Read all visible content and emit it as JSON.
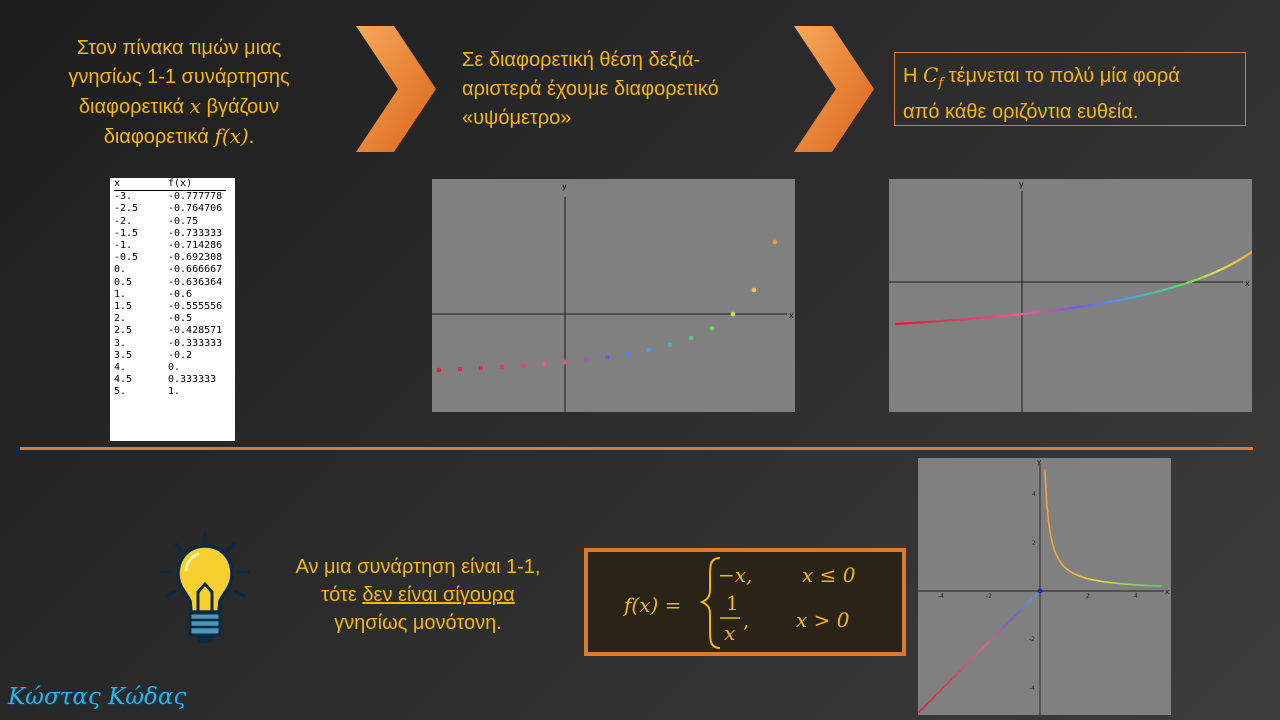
{
  "step1": {
    "line1": "Στον πίνακα τιμών μιας",
    "line2": "γνησίως 1-1 συνάρτησης",
    "line3_pre": "διαφορετικά ",
    "line3_var": "x",
    "line3_post": " βγάζουν",
    "line4_pre": "διαφορετικά ",
    "line4_var": "f(x)",
    "line4_post": "."
  },
  "step2": {
    "line1": "Σε διαφορετική θέση δεξιά-",
    "line2": "αριστερά έχουμε διαφορετικό",
    "line3": "«υψόμετρο»"
  },
  "step3": {
    "pre": "Η ",
    "var": "C",
    "sub": "f",
    "post": " τέμνεται το πολύ μία φορά",
    "line2": "από κάθε οριζόντια ευθεία."
  },
  "table": {
    "headers": [
      "x",
      "f(x)"
    ],
    "rows": [
      [
        "-3.",
        "-0.777778"
      ],
      [
        "-2.5",
        "-0.764706"
      ],
      [
        "-2.",
        "-0.75"
      ],
      [
        "-1.5",
        "-0.733333"
      ],
      [
        "-1.",
        "-0.714286"
      ],
      [
        "-0.5",
        "-0.692308"
      ],
      [
        "0.",
        "-0.666667"
      ],
      [
        "0.5",
        "-0.636364"
      ],
      [
        "1.",
        "-0.6"
      ],
      [
        "1.5",
        "-0.555556"
      ],
      [
        "2.",
        "-0.5"
      ],
      [
        "2.5",
        "-0.428571"
      ],
      [
        "3.",
        "-0.333333"
      ],
      [
        "3.5",
        "-0.2"
      ],
      [
        "4.",
        "0."
      ],
      [
        "4.5",
        "0.333333"
      ],
      [
        "5.",
        "1."
      ]
    ]
  },
  "plots": {
    "x_label": "x",
    "y_label": "y",
    "ticks_x": [
      "-4",
      "-2",
      "2",
      "4"
    ],
    "ticks_y": [
      "4",
      "2",
      "-2",
      "-4"
    ]
  },
  "claim": {
    "line1": "Αν μια συνάρτηση είναι 1-1,",
    "line2_pre": "τότε ",
    "line2_u": "δεν είναι σίγουρα",
    "line3": "γνησίως μονότονη."
  },
  "formula": {
    "lhs": "f(x) =",
    "case1_expr": "−x,",
    "case1_cond": "x ≤ 0",
    "case2_num": "1",
    "case2_den": "x",
    "case2_cond": "x > 0"
  },
  "author": "Κώστας Κώδας",
  "colors": {
    "accent_orange": "#e07b2c",
    "text_yellow": "#f5b800",
    "plot_bg": "#808080",
    "author_blue": "#23b7e5"
  }
}
